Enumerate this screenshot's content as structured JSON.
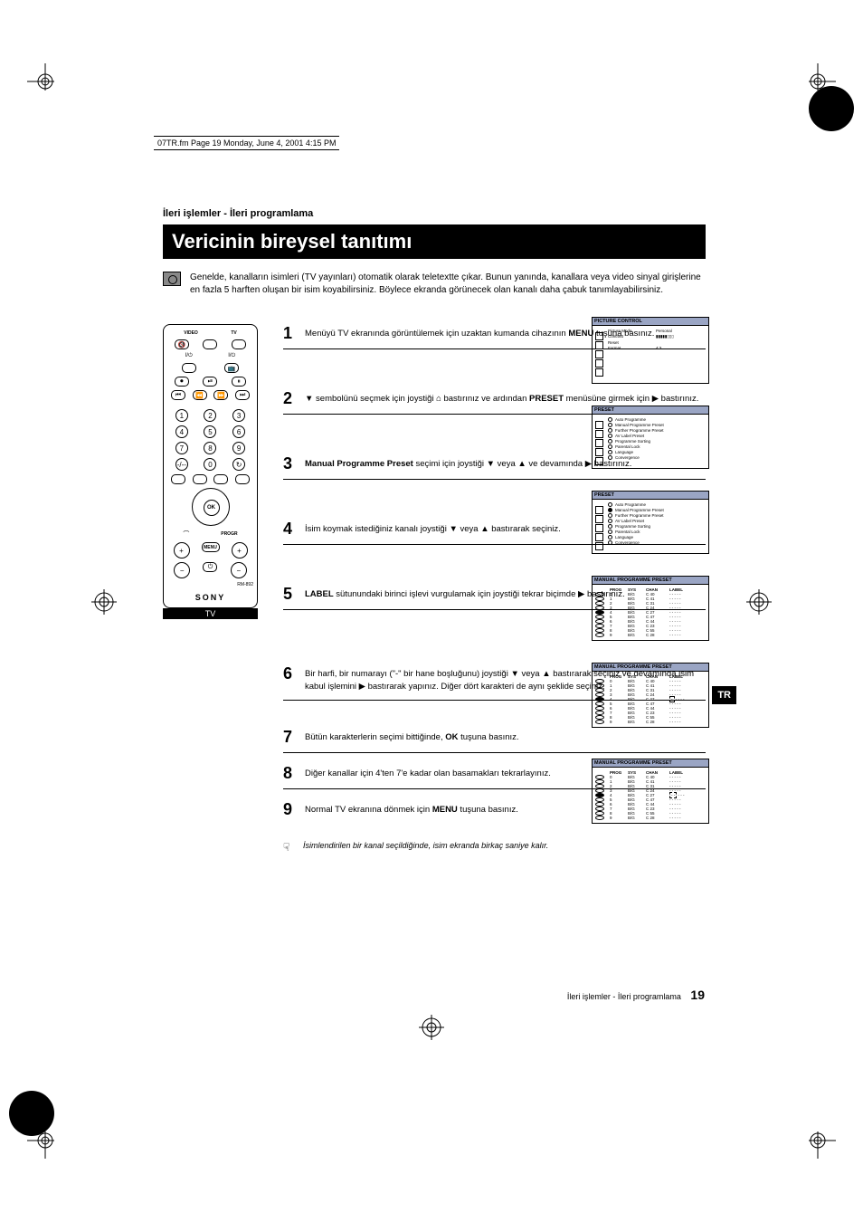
{
  "page_meta": "07TR.fm  Page 19  Monday, June 4, 2001  4:15 PM",
  "section_label": "İleri işlemler - İleri programlama",
  "title": "Vericinin bireysel tanıtımı",
  "intro": "Genelde, kanalların isimleri (TV yayınları) otomatik olarak teletextte çıkar. Bunun yanında, kanallara veya video sinyal girişlerine en fazla 5 harften oluşan bir isim koyabilirsiniz. Böylece ekranda görünecek olan kanalı daha çabuk tanımlayabilirsiniz.",
  "remote": {
    "labels": {
      "video": "VIDEO",
      "tv": "TV",
      "brand": "SONY",
      "badge": "TV",
      "model": "RM-892"
    },
    "num": [
      "1",
      "2",
      "3",
      "4",
      "5",
      "6",
      "7",
      "8",
      "9",
      "0"
    ],
    "progr": "PROGR"
  },
  "steps": [
    {
      "n": "1",
      "t": "Menüyü TV ekranında görüntülemek için uzaktan kumanda cihazının <b>MENU</b> tuşuna  basınız."
    },
    {
      "n": "2",
      "t": "▼ sembolünü seçmek için joystiği ⌂ bastırınız ve ardından <b>PRESET</b> menüsüne girmek için ▶ bastırınız."
    },
    {
      "n": "3",
      "t": "<b>Manual Programme Preset</b> seçimi için joystiği ▼ veya ▲ ve devamında ▶ bastırınız."
    },
    {
      "n": "4",
      "t": "İsim koymak istediğiniz kanalı joystiği ▼ veya ▲ bastırarak seçiniz."
    },
    {
      "n": "5",
      "t": "<b>LABEL</b> sütunundaki birinci işlevi vurgulamak için joystiği tekrar biçimde ▶ bastırınız."
    },
    {
      "n": "6",
      "t": "Bir harfi, bir numarayı (\"-\" bir hane boşluğunu) joystiği ▼ veya ▲ bastırarak seçiniz ve devamında isim kabul işlemini ▶ bastırarak yapınız. Diğer dört karakteri de aynı şeklide seçiniz."
    },
    {
      "n": "7",
      "t": "Bütün karakterlerin seçimi bittiğinde, <b>OK</b> tuşuna basınız."
    },
    {
      "n": "8",
      "t": "Diğer kanallar için 4'ten 7'e kadar olan basamakları tekrarlayınız."
    },
    {
      "n": "9",
      "t": "Normal TV ekranına dönmek için <b>MENU</b> tuşuna basınız."
    }
  ],
  "note": "İsimlendirilen bir kanal seçildiğinde, isim ekranda birkaç saniye kalır.",
  "fig1": {
    "title": "PICTURE  CONTROL",
    "rows": [
      [
        "Picture Mode",
        "Personal"
      ],
      [
        "Contrast",
        "▮▮▮▮▮▯▯▯"
      ],
      [
        "Reset",
        ""
      ],
      [
        "Format",
        "4:3"
      ]
    ]
  },
  "preset_menu": {
    "title": "PRESET",
    "items": [
      "Auto Programme",
      "Manual Programme Preset",
      "Further Programme Preset",
      "AV Label Preset",
      "Programme Sorting",
      "Parental Lock",
      "Language",
      "Convergence"
    ]
  },
  "mpp": {
    "title": "MANUAL PROGRAMME PRESET",
    "head": [
      "PROG",
      "SYS",
      "CHAN",
      "LABEL"
    ],
    "rows": [
      [
        "0",
        "B/G",
        "C 40",
        "- - - - -"
      ],
      [
        "1",
        "B/G",
        "C 41",
        "- - - - -"
      ],
      [
        "2",
        "B/G",
        "C 31",
        "- - - - -"
      ],
      [
        "3",
        "B/G",
        "C 24",
        "- - - - -"
      ],
      [
        "4",
        "B/G",
        "C 27",
        "- - - - -"
      ],
      [
        "5",
        "B/G",
        "C 47",
        "- - - - -"
      ],
      [
        "6",
        "B/G",
        "C 44",
        "- - - - -"
      ],
      [
        "7",
        "B/G",
        "C 23",
        "- - - - -"
      ],
      [
        "8",
        "B/G",
        "C 55",
        "- - - - -"
      ],
      [
        "9",
        "B/G",
        "C 28",
        "- - - - -"
      ]
    ]
  },
  "side_tab": "TR",
  "footer": {
    "text": "İleri işlemler - İleri programlama",
    "page": "19"
  }
}
